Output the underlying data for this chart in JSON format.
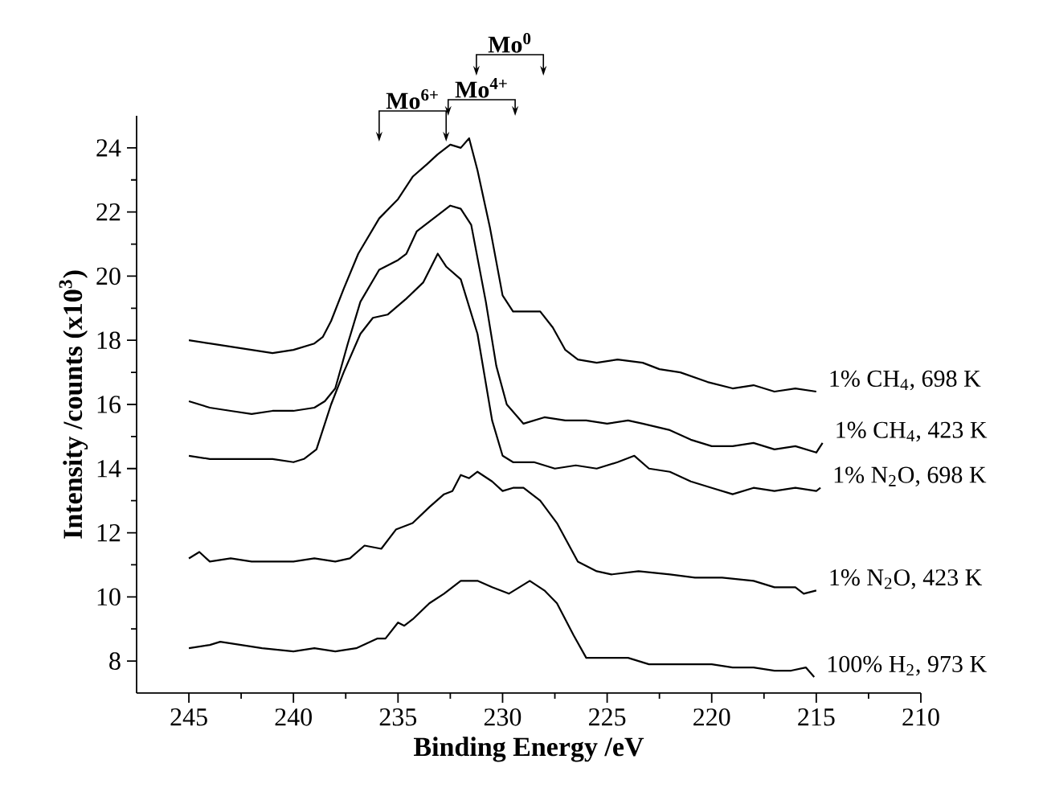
{
  "chart_data": {
    "type": "line",
    "xlabel": "Binding Energy /eV",
    "ylabel": "Intensity /counts (x10$^{3}$)",
    "xlim": [
      247.5,
      210
    ],
    "xticks": [
      245,
      240,
      235,
      230,
      225,
      220,
      215,
      210
    ],
    "ylim": [
      7,
      25
    ],
    "yticks": [
      8,
      10,
      12,
      14,
      16,
      18,
      20,
      22,
      24
    ],
    "grid": false,
    "legend": false,
    "marker": "none",
    "line_style": "solid",
    "annotations": [
      "Mo$^{6+}$",
      "Mo$^{4+}$",
      "Mo$^{0}$"
    ],
    "series": [
      {
        "name": "1% CH$_{4}$, 698 K",
        "color": "#000000",
        "x": [
          245,
          244,
          243,
          242,
          241,
          240,
          239,
          238.6,
          238.2,
          237.6,
          236.9,
          235.9,
          235,
          234.3,
          233.6,
          233.1,
          232.5,
          232,
          231.6,
          231.2,
          230.6,
          230,
          229.5,
          229,
          228.2,
          227.6,
          227,
          226.4,
          225.5,
          224.5,
          223.3,
          222.5,
          221.5,
          220.2,
          219,
          218,
          217,
          216,
          215
        ],
        "values": [
          18.0,
          17.9,
          17.8,
          17.7,
          17.6,
          17.7,
          17.9,
          18.1,
          18.6,
          19.6,
          20.7,
          21.8,
          22.4,
          23.1,
          23.5,
          23.8,
          24.1,
          24.0,
          24.3,
          23.3,
          21.5,
          19.4,
          18.9,
          18.9,
          18.9,
          18.4,
          17.7,
          17.4,
          17.3,
          17.4,
          17.3,
          17.1,
          17.0,
          16.7,
          16.5,
          16.6,
          16.4,
          16.5,
          16.4
        ]
      },
      {
        "name": "1% CH$_{4}$, 423 K",
        "color": "#000000",
        "x": [
          245,
          244,
          243,
          242,
          241,
          240,
          239,
          238.5,
          238,
          237.4,
          236.8,
          235.9,
          235,
          234.6,
          234.1,
          233.5,
          232.5,
          232,
          231.5,
          230.8,
          230.3,
          229.8,
          229,
          228,
          227,
          226,
          225,
          224,
          223.3,
          222,
          221,
          220,
          219,
          218,
          217,
          216,
          215,
          214.7
        ],
        "values": [
          16.1,
          15.9,
          15.8,
          15.7,
          15.8,
          15.8,
          15.9,
          16.1,
          16.5,
          17.9,
          19.2,
          20.2,
          20.5,
          20.7,
          21.4,
          21.7,
          22.2,
          22.1,
          21.6,
          19.2,
          17.2,
          16.0,
          15.4,
          15.6,
          15.5,
          15.5,
          15.4,
          15.5,
          15.4,
          15.2,
          14.9,
          14.7,
          14.7,
          14.8,
          14.6,
          14.7,
          14.5,
          14.8
        ]
      },
      {
        "name": "1% N$_{2}$O, 698 K",
        "color": "#000000",
        "x": [
          245,
          244,
          243,
          242,
          241,
          240,
          239.5,
          238.9,
          238.2,
          237.6,
          236.8,
          236.2,
          235.5,
          234.6,
          233.8,
          233.1,
          232.7,
          232,
          231.2,
          230.5,
          230,
          229.5,
          228.5,
          227.5,
          226.5,
          225.5,
          224.5,
          223.7,
          223,
          222,
          221,
          220,
          219,
          218,
          217,
          216,
          215,
          214.8
        ],
        "values": [
          14.4,
          14.3,
          14.3,
          14.3,
          14.3,
          14.2,
          14.3,
          14.6,
          16.0,
          17.0,
          18.2,
          18.7,
          18.8,
          19.3,
          19.8,
          20.7,
          20.3,
          19.9,
          18.2,
          15.5,
          14.4,
          14.2,
          14.2,
          14.0,
          14.1,
          14.0,
          14.2,
          14.4,
          14.0,
          13.9,
          13.6,
          13.4,
          13.2,
          13.4,
          13.3,
          13.4,
          13.3,
          13.4
        ]
      },
      {
        "name": "1% N$_{2}$O, 423 K",
        "color": "#000000",
        "x": [
          245,
          244.5,
          244,
          243,
          242,
          241,
          240,
          239,
          238,
          237.3,
          236.6,
          235.8,
          235.1,
          234.3,
          233.5,
          232.8,
          232.4,
          232,
          231.6,
          231.2,
          230.5,
          230,
          229.5,
          229,
          228.2,
          227.4,
          226.9,
          226.4,
          225.5,
          224.8,
          223.5,
          222,
          220.8,
          219.5,
          218,
          217,
          216,
          215.6,
          215
        ],
        "values": [
          11.2,
          11.4,
          11.1,
          11.2,
          11.1,
          11.1,
          11.1,
          11.2,
          11.1,
          11.2,
          11.6,
          11.5,
          12.1,
          12.3,
          12.8,
          13.2,
          13.3,
          13.8,
          13.7,
          13.9,
          13.6,
          13.3,
          13.4,
          13.4,
          13.0,
          12.3,
          11.7,
          11.1,
          10.8,
          10.7,
          10.8,
          10.7,
          10.6,
          10.6,
          10.5,
          10.3,
          10.3,
          10.1,
          10.2
        ]
      },
      {
        "name": "100% H$_{2}$, 973 K",
        "color": "#000000",
        "x": [
          245,
          244,
          243.5,
          242.5,
          241.5,
          240,
          239,
          238,
          237,
          236,
          235.6,
          235,
          234.7,
          234.3,
          233.5,
          232.8,
          232,
          231.2,
          230.5,
          229.7,
          229.2,
          228.7,
          228,
          227.4,
          226.6,
          226,
          225,
          224,
          223,
          222,
          221.3,
          220,
          219,
          218,
          217,
          216.2,
          215.5,
          215.1
        ],
        "values": [
          8.4,
          8.5,
          8.6,
          8.5,
          8.4,
          8.3,
          8.4,
          8.3,
          8.4,
          8.7,
          8.7,
          9.2,
          9.1,
          9.3,
          9.8,
          10.1,
          10.5,
          10.5,
          10.3,
          10.1,
          10.3,
          10.5,
          10.2,
          9.8,
          8.8,
          8.1,
          8.1,
          8.1,
          7.9,
          7.9,
          7.9,
          7.9,
          7.8,
          7.8,
          7.7,
          7.7,
          7.8,
          7.5
        ]
      }
    ]
  }
}
